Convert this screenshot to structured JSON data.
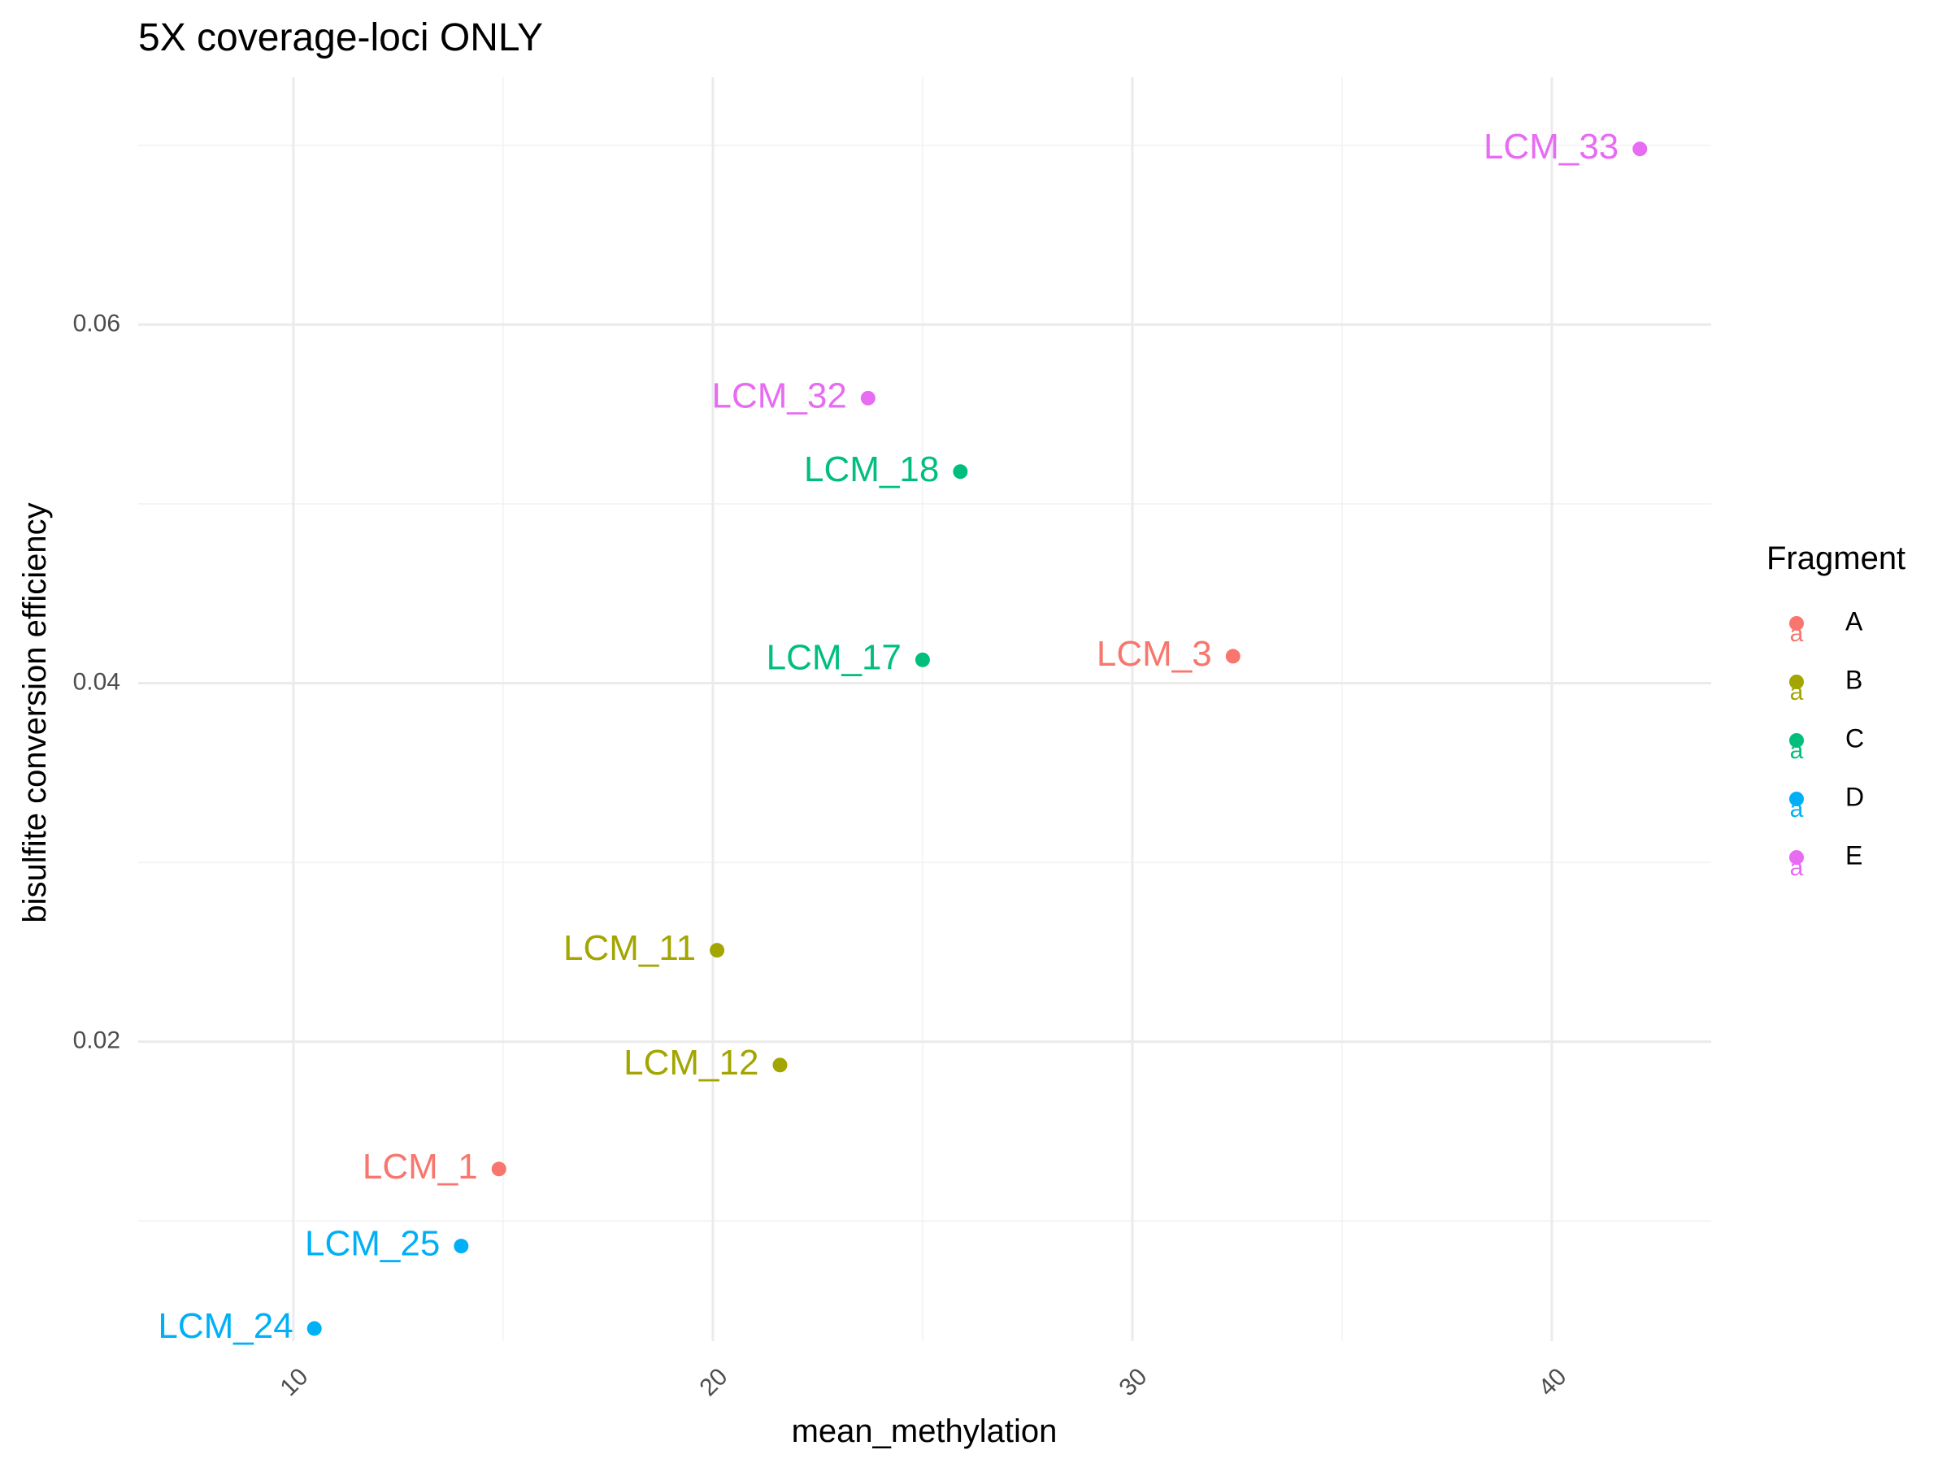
{
  "chart_data": {
    "type": "scatter",
    "title": "5X coverage-loci ONLY",
    "xlabel": "mean_methylation",
    "ylabel": "bisulfite conversion efficiency",
    "xlim": [
      6.3,
      43.8
    ],
    "ylim": [
      0.0033,
      0.0738
    ],
    "x_ticks": [
      10,
      20,
      30,
      40
    ],
    "x_tick_labels": [
      "10",
      "20",
      "30",
      "40"
    ],
    "x_minor_ticks": [
      15,
      25,
      35
    ],
    "y_ticks": [
      0.02,
      0.04,
      0.06
    ],
    "y_tick_labels": [
      "0.02",
      "0.04",
      "0.06"
    ],
    "y_minor_ticks": [
      0.01,
      0.03,
      0.05,
      0.07
    ],
    "grid": true,
    "legend": {
      "title": "Fragment",
      "position": "right",
      "entries": [
        {
          "label": "A",
          "color": "#F8766D"
        },
        {
          "label": "B",
          "color": "#A3A500"
        },
        {
          "label": "C",
          "color": "#00BF7D"
        },
        {
          "label": "D",
          "color": "#00B0F6"
        },
        {
          "label": "E",
          "color": "#E76BF3"
        }
      ]
    },
    "series": [
      {
        "name": "A",
        "color": "#F8766D",
        "points": [
          {
            "label": "LCM_1",
            "x": 14.9,
            "y": 0.0129
          },
          {
            "label": "LCM_3",
            "x": 32.4,
            "y": 0.0415
          }
        ]
      },
      {
        "name": "B",
        "color": "#A3A500",
        "points": [
          {
            "label": "LCM_11",
            "x": 20.1,
            "y": 0.0251
          },
          {
            "label": "LCM_12",
            "x": 21.6,
            "y": 0.0187
          }
        ]
      },
      {
        "name": "C",
        "color": "#00BF7D",
        "points": [
          {
            "label": "LCM_17",
            "x": 25.0,
            "y": 0.0413
          },
          {
            "label": "LCM_18",
            "x": 25.9,
            "y": 0.0518
          }
        ]
      },
      {
        "name": "D",
        "color": "#00B0F6",
        "points": [
          {
            "label": "LCM_24",
            "x": 10.5,
            "y": 0.004
          },
          {
            "label": "LCM_25",
            "x": 14.0,
            "y": 0.0086
          }
        ]
      },
      {
        "name": "E",
        "color": "#E76BF3",
        "points": [
          {
            "label": "LCM_32",
            "x": 23.7,
            "y": 0.0559
          },
          {
            "label": "LCM_33",
            "x": 42.1,
            "y": 0.0698
          }
        ]
      }
    ]
  }
}
